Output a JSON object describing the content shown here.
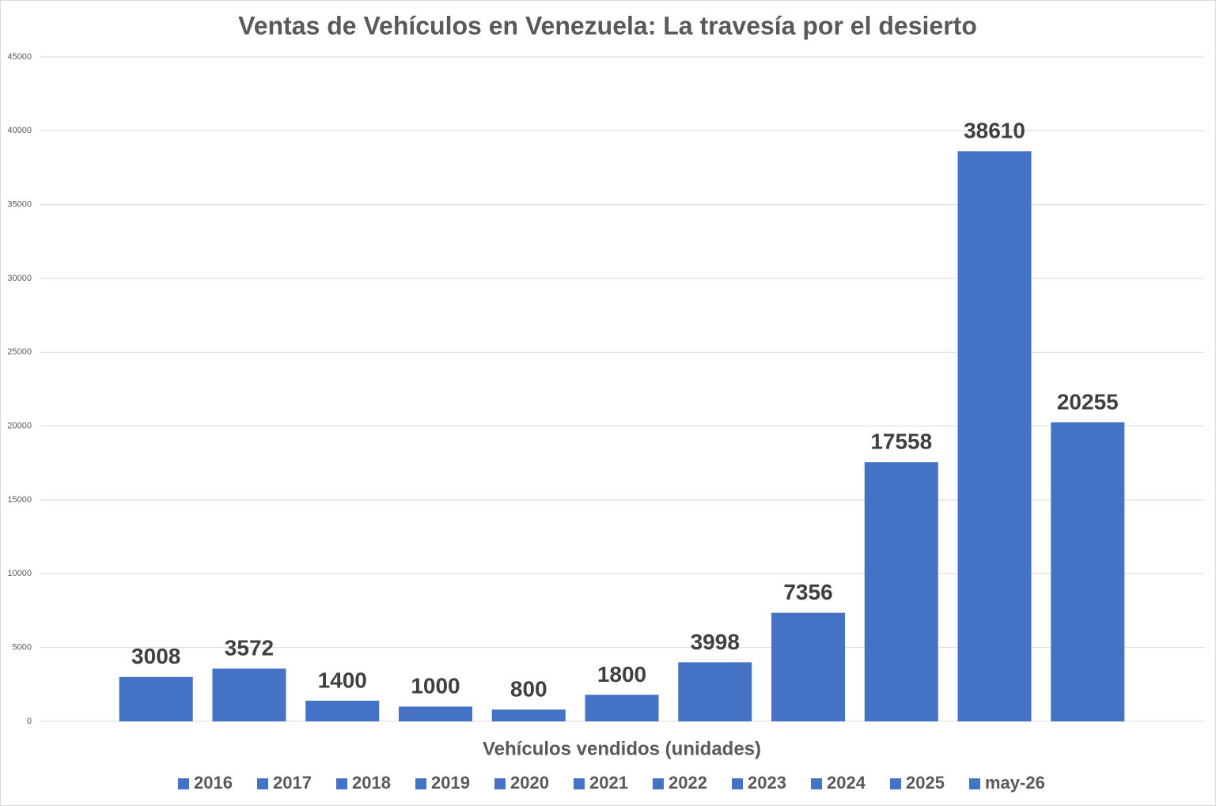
{
  "chart_data": {
    "type": "bar",
    "title": "Ventas de Vehículos en Venezuela: La travesía por el desierto",
    "x_label": "Vehículos vendidos (unidades)",
    "categories": [
      null
    ],
    "series": [
      {
        "name": "2016",
        "color": "#4472c4",
        "values": [
          3008
        ]
      },
      {
        "name": "2017",
        "color": "#4472c4",
        "values": [
          3572
        ]
      },
      {
        "name": "2018",
        "color": "#4472c4",
        "values": [
          1400
        ]
      },
      {
        "name": "2019",
        "color": "#4472c4",
        "values": [
          1000
        ]
      },
      {
        "name": "2020",
        "color": "#4472c4",
        "values": [
          800
        ]
      },
      {
        "name": "2021",
        "color": "#4472c4",
        "values": [
          1800
        ]
      },
      {
        "name": "2022",
        "color": "#4472c4",
        "values": [
          3998
        ]
      },
      {
        "name": "2023",
        "color": "#4472c4",
        "values": [
          7356
        ]
      },
      {
        "name": "2024",
        "color": "#4472c4",
        "values": [
          17558
        ]
      },
      {
        "name": "2025",
        "color": "#4472c4",
        "values": [
          38610
        ]
      },
      {
        "name": "may-26",
        "color": "#4472c4",
        "values": [
          20255
        ]
      }
    ],
    "ylim": [
      0,
      45000
    ],
    "yticks": [
      0,
      5000,
      10000,
      15000,
      20000,
      25000,
      30000,
      35000,
      40000,
      45000
    ],
    "grid": true,
    "legend": "bottom"
  }
}
